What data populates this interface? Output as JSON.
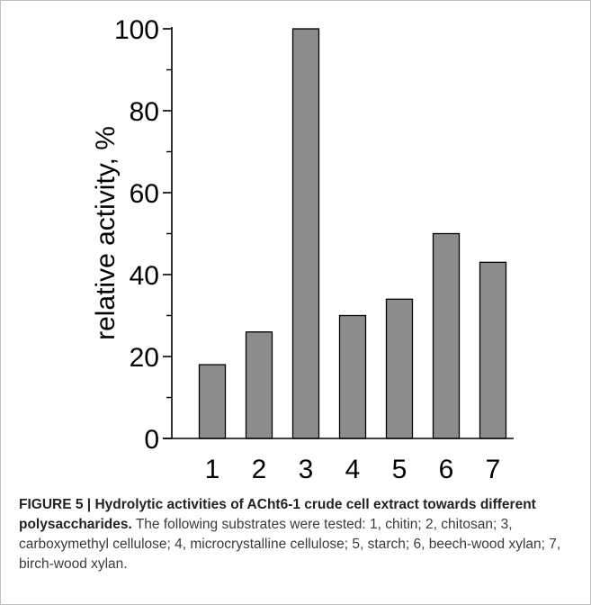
{
  "chart_data": {
    "type": "bar",
    "categories": [
      "1",
      "2",
      "3",
      "4",
      "5",
      "6",
      "7"
    ],
    "values": [
      18,
      26,
      100,
      30,
      34,
      50,
      43
    ],
    "ylabel": "relative activity, %",
    "xlabel": "",
    "ylim": [
      0,
      100
    ],
    "yticks": [
      0,
      20,
      40,
      60,
      80,
      100
    ],
    "bar_color": "#8c8c8c",
    "bar_edge_color": "#000000",
    "grid": false
  },
  "caption": {
    "figure_label": "FIGURE 5 | ",
    "title": "Hydrolytic activities of ACht6-1 crude cell extract towards different polysaccharides.",
    "body": " The following substrates were tested: 1, chitin; 2, chitosan; 3, carboxymethyl cellulose; 4, microcrystalline cellulose; 5, starch; 6, beech-wood xylan; 7, birch-wood xylan."
  }
}
